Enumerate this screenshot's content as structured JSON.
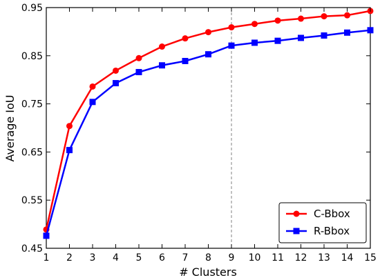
{
  "chart_data": {
    "type": "line",
    "x": [
      1,
      2,
      3,
      4,
      5,
      6,
      7,
      8,
      9,
      10,
      11,
      12,
      13,
      14,
      15
    ],
    "series": [
      {
        "name": "C-Bbox",
        "color": "#ff0000",
        "marker": "circle",
        "values": [
          0.489,
          0.704,
          0.786,
          0.819,
          0.845,
          0.869,
          0.886,
          0.899,
          0.909,
          0.916,
          0.923,
          0.927,
          0.932,
          0.934,
          0.943
        ]
      },
      {
        "name": "R-Bbox",
        "color": "#0000ff",
        "marker": "square",
        "values": [
          0.476,
          0.654,
          0.754,
          0.793,
          0.816,
          0.83,
          0.839,
          0.853,
          0.871,
          0.877,
          0.881,
          0.887,
          0.892,
          0.898,
          0.903
        ]
      }
    ],
    "xlabel": "# Clusters",
    "ylabel": "Average IoU",
    "xlim": [
      1,
      15
    ],
    "ylim": [
      0.45,
      0.95
    ],
    "xticks": [
      "1",
      "2",
      "3",
      "4",
      "5",
      "6",
      "7",
      "8",
      "9",
      "10",
      "11",
      "12",
      "13",
      "14",
      "15"
    ],
    "yticks": [
      "0.45",
      "0.55",
      "0.65",
      "0.75",
      "0.85",
      "0.95"
    ],
    "ytick_values": [
      0.45,
      0.55,
      0.65,
      0.75,
      0.85,
      0.95
    ],
    "reference_line_x": 9,
    "reference_line_color": "#808080",
    "grid": false,
    "legend_position": "bottom-right"
  }
}
